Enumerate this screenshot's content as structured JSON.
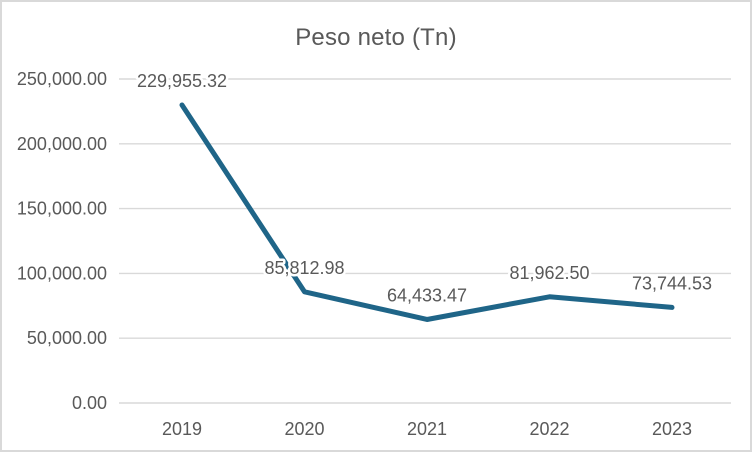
{
  "frame": {
    "background": "#ffffff",
    "border_color": "#d9d9d9"
  },
  "chart_data": {
    "type": "line",
    "title": "Peso neto (Tn)",
    "xlabel": "",
    "ylabel": "",
    "categories": [
      "2019",
      "2020",
      "2021",
      "2022",
      "2023"
    ],
    "series": [
      {
        "name": "Peso neto (Tn)",
        "values": [
          229955.32,
          85812.98,
          64433.47,
          81962.5,
          73744.53
        ]
      }
    ],
    "data_labels": [
      "229,955.32",
      "85,812.98",
      "64,433.47",
      "81,962.50",
      "73,744.53"
    ],
    "y_ticks": [
      {
        "value": 0,
        "label": "0.00"
      },
      {
        "value": 50000,
        "label": "50,000.00"
      },
      {
        "value": 100000,
        "label": "100,000.00"
      },
      {
        "value": 150000,
        "label": "150,000.00"
      },
      {
        "value": 200000,
        "label": "200,000.00"
      },
      {
        "value": 250000,
        "label": "250,000.00"
      }
    ],
    "ylim": [
      0,
      250000
    ],
    "grid": true,
    "legend": "none",
    "colors": {
      "line": "#1f6588",
      "gridline": "#d9d9d9",
      "text": "#595959",
      "data_label_text": "#595959"
    }
  }
}
